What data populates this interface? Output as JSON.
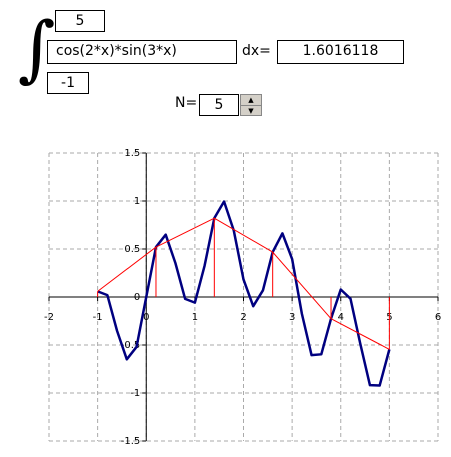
{
  "form": {
    "upper_limit": "5",
    "integrand": "cos(2*x)*sin(3*x)",
    "dx_label": "dx=",
    "result": "1.6016118",
    "lower_limit": "-1",
    "n_label": "N=",
    "n_value": "5"
  },
  "chart_data": {
    "type": "line",
    "series": [
      {
        "color": "#000080",
        "x": [
          -1,
          -0.8,
          -0.6,
          -0.4,
          -0.2,
          0,
          0.2,
          0.4,
          0.6,
          0.8,
          1,
          1.2,
          1.4,
          1.6,
          1.8,
          2,
          2.2,
          2.4,
          2.6,
          2.8,
          3,
          3.2,
          3.4,
          3.6,
          3.8,
          4,
          4.2,
          4.4,
          4.6,
          4.8,
          5
        ],
        "values": [
          0.0587,
          0.0197,
          -0.3529,
          -0.6493,
          -0.5201,
          0,
          0.5201,
          0.6493,
          0.3529,
          -0.0197,
          -0.0587,
          0.3263,
          0.8212,
          0.9945,
          0.6931,
          0.1826,
          -0.0957,
          0.0694,
          0.4678,
          0.6628,
          0.3957,
          -0.1731,
          -0.606,
          -0.597,
          -0.2255,
          0.0781,
          -0.0174,
          -0.4831,
          -0.9186,
          -0.9222,
          -0.5457
        ]
      },
      {
        "color": "#ff0000",
        "x": [
          -1,
          0.2,
          1.4,
          2.6,
          3.8,
          5
        ],
        "values": [
          0.0587,
          0.5201,
          0.8212,
          0.4678,
          -0.2255,
          -0.5457
        ]
      }
    ],
    "xlim": [
      -2,
      6
    ],
    "xticks": [
      -2,
      -1,
      0,
      1,
      2,
      3,
      4,
      5,
      6
    ],
    "ylim": [
      -1.5,
      1.5
    ],
    "yticks": [
      -1.5,
      -1,
      -0.5,
      0,
      0.5,
      1,
      1.5
    ],
    "grid": true
  }
}
